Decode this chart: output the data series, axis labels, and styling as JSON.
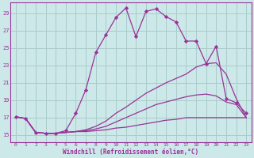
{
  "background_color": "#cce8e8",
  "grid_color": "#aacccc",
  "line_color": "#993399",
  "marker_color": "#993399",
  "xlabel": "Windchill (Refroidissement éolien,°C)",
  "xlabel_color": "#993399",
  "ylabel_ticks": [
    15,
    17,
    19,
    21,
    23,
    25,
    27,
    29
  ],
  "xlim": [
    -0.5,
    23.5
  ],
  "ylim": [
    14.2,
    30.2
  ],
  "xticks": [
    0,
    1,
    2,
    3,
    4,
    5,
    6,
    7,
    8,
    9,
    10,
    11,
    12,
    13,
    14,
    15,
    16,
    17,
    18,
    19,
    20,
    21,
    22,
    23
  ],
  "series": [
    {
      "x": [
        0,
        1,
        2,
        3,
        4,
        5,
        6,
        7,
        8,
        9,
        10,
        11,
        12,
        13,
        14,
        15,
        16,
        17,
        18,
        19,
        20,
        21,
        22,
        23
      ],
      "y": [
        17.1,
        16.9,
        15.3,
        15.2,
        15.2,
        15.5,
        17.5,
        20.2,
        24.5,
        26.5,
        28.5,
        29.6,
        26.3,
        29.2,
        29.5,
        28.6,
        28.0,
        25.8,
        25.8,
        23.2,
        25.2,
        19.2,
        18.7,
        17.5
      ],
      "has_markers": true,
      "linestyle": "solid",
      "linewidth": 0.9
    },
    {
      "x": [
        0,
        1,
        2,
        3,
        4,
        5,
        6,
        7,
        8,
        9,
        10,
        11,
        12,
        13,
        14,
        15,
        16,
        17,
        18,
        19,
        20,
        21,
        22,
        23
      ],
      "y": [
        17.1,
        16.9,
        15.3,
        15.2,
        15.2,
        15.3,
        15.4,
        15.6,
        16.0,
        16.6,
        17.5,
        18.2,
        19.0,
        19.8,
        20.4,
        21.0,
        21.5,
        22.0,
        22.8,
        23.2,
        23.3,
        22.0,
        19.2,
        17.0
      ],
      "has_markers": false,
      "linestyle": "solid",
      "linewidth": 0.9
    },
    {
      "x": [
        0,
        1,
        2,
        3,
        4,
        5,
        6,
        7,
        8,
        9,
        10,
        11,
        12,
        13,
        14,
        15,
        16,
        17,
        18,
        19,
        20,
        21,
        22,
        23
      ],
      "y": [
        17.1,
        16.9,
        15.3,
        15.2,
        15.2,
        15.3,
        15.4,
        15.5,
        15.7,
        16.0,
        16.5,
        17.0,
        17.5,
        18.0,
        18.5,
        18.8,
        19.1,
        19.4,
        19.6,
        19.7,
        19.5,
        18.8,
        18.5,
        17.0
      ],
      "has_markers": false,
      "linestyle": "solid",
      "linewidth": 0.9
    },
    {
      "x": [
        0,
        1,
        2,
        3,
        4,
        5,
        6,
        7,
        8,
        9,
        10,
        11,
        12,
        13,
        14,
        15,
        16,
        17,
        18,
        19,
        20,
        21,
        22,
        23
      ],
      "y": [
        17.1,
        16.9,
        15.3,
        15.2,
        15.2,
        15.3,
        15.4,
        15.4,
        15.5,
        15.6,
        15.8,
        15.9,
        16.1,
        16.3,
        16.5,
        16.7,
        16.8,
        17.0,
        17.0,
        17.0,
        17.0,
        17.0,
        17.0,
        17.0
      ],
      "has_markers": false,
      "linestyle": "solid",
      "linewidth": 0.9
    }
  ]
}
